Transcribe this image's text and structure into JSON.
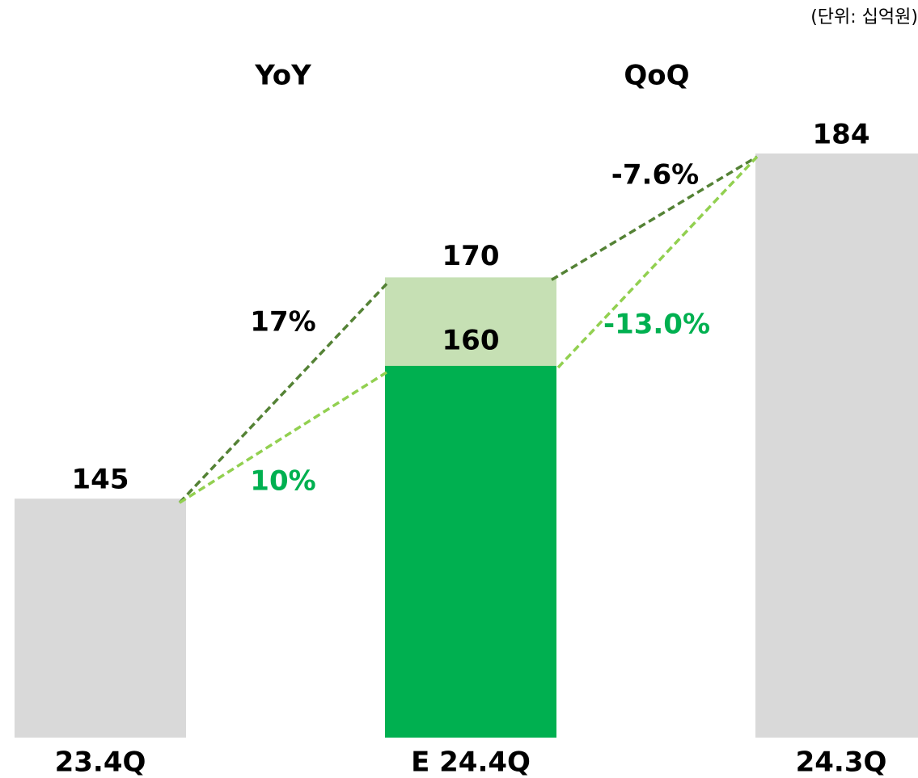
{
  "chart_data": {
    "type": "bar",
    "subtitle": "(단위: 십억원)",
    "categories": [
      "23.4Q",
      "E 24.4Q",
      "24.3Q"
    ],
    "values": [
      145,
      160,
      184
    ],
    "colors": [
      "#d9d9d9",
      "#00b050",
      "#d9d9d9"
    ],
    "upper_values": [
      null,
      170,
      null
    ],
    "upper_color": "#c6e0b4",
    "ylim": [
      118,
      184
    ],
    "annotations": [
      {
        "text": "YoY",
        "color": "#000000"
      },
      {
        "text": "QoQ",
        "color": "#000000"
      },
      {
        "text": "17%",
        "color": "#000000"
      },
      {
        "text": "10%",
        "color": "#00b050"
      },
      {
        "text": "-7.6%",
        "color": "#000000"
      },
      {
        "text": "-13.0%",
        "color": "#00b050"
      }
    ],
    "line_colors": [
      "#548235",
      "#92d050"
    ]
  }
}
